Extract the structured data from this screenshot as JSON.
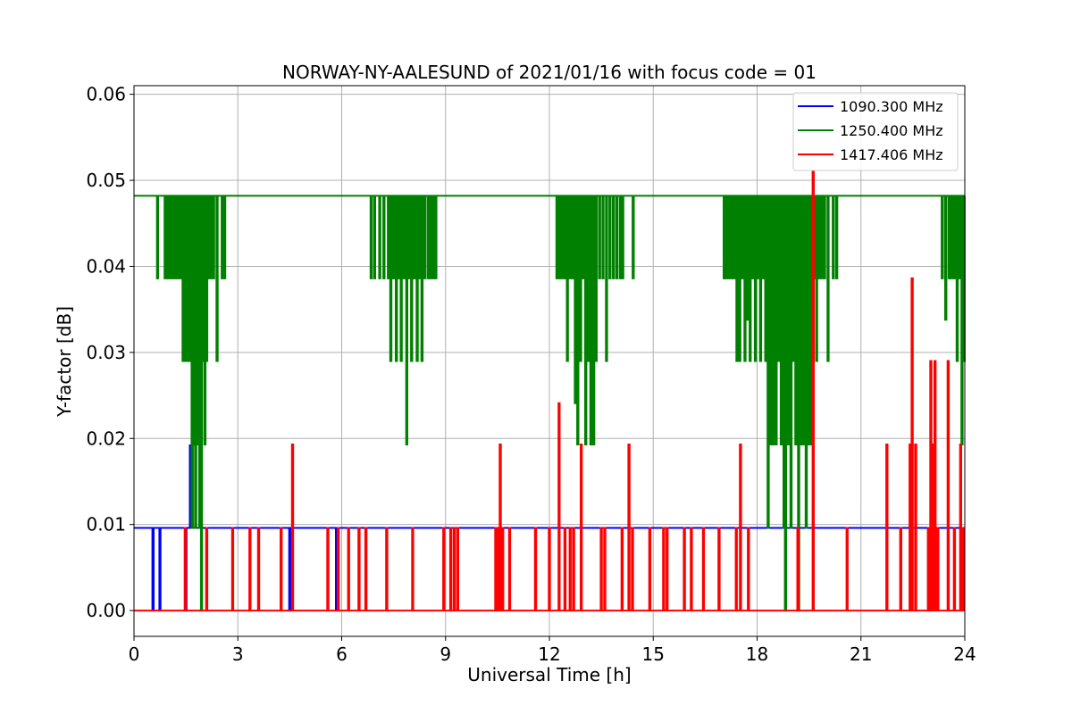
{
  "chart_data": {
    "type": "line",
    "title": "NORWAY-NY-AALESUND of 2021/01/16 with focus code = 01",
    "xlabel": "Universal Time [h]",
    "ylabel": "Y-factor [dB]",
    "xlim": [
      0,
      24
    ],
    "ylim": [
      -0.003,
      0.061
    ],
    "x_ticks": [
      0,
      3,
      6,
      9,
      12,
      15,
      18,
      21,
      24
    ],
    "y_ticks": [
      0.0,
      0.01,
      0.02,
      0.03,
      0.04,
      0.05,
      0.06
    ],
    "y_tick_labels": [
      "0.00",
      "0.01",
      "0.02",
      "0.03",
      "0.04",
      "0.05",
      "0.06"
    ],
    "grid": true,
    "legend_position": "top-right",
    "series": [
      {
        "name": "1090.300 MHz",
        "color": "#0000ff",
        "baseline": 0.0096,
        "dips": [
          {
            "x": 0.55,
            "y": 0.0
          },
          {
            "x": 0.75,
            "y": 0.0
          },
          {
            "x": 1.5,
            "y": 0.0
          },
          {
            "x": 4.5,
            "y": 0.0
          },
          {
            "x": 5.85,
            "y": 0.0
          }
        ],
        "peaks": [
          {
            "x": 1.63,
            "y": 0.0192
          },
          {
            "x": 1.68,
            "y": 0.0192
          }
        ]
      },
      {
        "name": "1250.400 MHz",
        "color": "#008000",
        "baseline": 0.0482,
        "dips": [
          {
            "x": 0.68,
            "y": 0.0386
          },
          {
            "x": 0.9,
            "y": 0.0386
          },
          {
            "x": 0.98,
            "y": 0.0386
          },
          {
            "x": 1.05,
            "y": 0.0386
          },
          {
            "x": 1.12,
            "y": 0.0386
          },
          {
            "x": 1.2,
            "y": 0.0386
          },
          {
            "x": 1.28,
            "y": 0.0386
          },
          {
            "x": 1.35,
            "y": 0.0386
          },
          {
            "x": 1.42,
            "y": 0.029
          },
          {
            "x": 1.48,
            "y": 0.029
          },
          {
            "x": 1.55,
            "y": 0.029
          },
          {
            "x": 1.62,
            "y": 0.029
          },
          {
            "x": 1.68,
            "y": 0.0096
          },
          {
            "x": 1.72,
            "y": 0.0193
          },
          {
            "x": 1.78,
            "y": 0.0096
          },
          {
            "x": 1.83,
            "y": 0.0193
          },
          {
            "x": 1.9,
            "y": 0.0096
          },
          {
            "x": 1.95,
            "y": 0.0
          },
          {
            "x": 2.0,
            "y": 0.029
          },
          {
            "x": 2.05,
            "y": 0.0193
          },
          {
            "x": 2.1,
            "y": 0.029
          },
          {
            "x": 2.15,
            "y": 0.0386
          },
          {
            "x": 2.22,
            "y": 0.0386
          },
          {
            "x": 2.3,
            "y": 0.0386
          },
          {
            "x": 2.4,
            "y": 0.029
          },
          {
            "x": 2.55,
            "y": 0.0386
          },
          {
            "x": 2.62,
            "y": 0.0386
          },
          {
            "x": 6.85,
            "y": 0.0386
          },
          {
            "x": 6.95,
            "y": 0.0386
          },
          {
            "x": 7.1,
            "y": 0.0386
          },
          {
            "x": 7.22,
            "y": 0.0386
          },
          {
            "x": 7.35,
            "y": 0.0386
          },
          {
            "x": 7.42,
            "y": 0.029
          },
          {
            "x": 7.5,
            "y": 0.0386
          },
          {
            "x": 7.58,
            "y": 0.029
          },
          {
            "x": 7.65,
            "y": 0.0386
          },
          {
            "x": 7.72,
            "y": 0.029
          },
          {
            "x": 7.8,
            "y": 0.0386
          },
          {
            "x": 7.88,
            "y": 0.0193
          },
          {
            "x": 7.95,
            "y": 0.0386
          },
          {
            "x": 8.02,
            "y": 0.029
          },
          {
            "x": 8.1,
            "y": 0.0386
          },
          {
            "x": 8.18,
            "y": 0.029
          },
          {
            "x": 8.25,
            "y": 0.0386
          },
          {
            "x": 8.32,
            "y": 0.029
          },
          {
            "x": 8.4,
            "y": 0.0386
          },
          {
            "x": 8.5,
            "y": 0.0386
          },
          {
            "x": 8.58,
            "y": 0.0386
          },
          {
            "x": 8.65,
            "y": 0.0386
          },
          {
            "x": 8.72,
            "y": 0.0386
          },
          {
            "x": 12.22,
            "y": 0.0386
          },
          {
            "x": 12.3,
            "y": 0.0386
          },
          {
            "x": 12.38,
            "y": 0.0386
          },
          {
            "x": 12.45,
            "y": 0.0386
          },
          {
            "x": 12.52,
            "y": 0.029
          },
          {
            "x": 12.6,
            "y": 0.0386
          },
          {
            "x": 12.68,
            "y": 0.0386
          },
          {
            "x": 12.75,
            "y": 0.0241
          },
          {
            "x": 12.82,
            "y": 0.0193
          },
          {
            "x": 12.9,
            "y": 0.029
          },
          {
            "x": 12.98,
            "y": 0.0386
          },
          {
            "x": 13.05,
            "y": 0.0193
          },
          {
            "x": 13.12,
            "y": 0.029
          },
          {
            "x": 13.2,
            "y": 0.0193
          },
          {
            "x": 13.28,
            "y": 0.0193
          },
          {
            "x": 13.35,
            "y": 0.029
          },
          {
            "x": 13.45,
            "y": 0.0386
          },
          {
            "x": 13.55,
            "y": 0.0386
          },
          {
            "x": 13.65,
            "y": 0.029
          },
          {
            "x": 13.75,
            "y": 0.0386
          },
          {
            "x": 13.85,
            "y": 0.0386
          },
          {
            "x": 13.95,
            "y": 0.0386
          },
          {
            "x": 14.05,
            "y": 0.0386
          },
          {
            "x": 14.12,
            "y": 0.0386
          },
          {
            "x": 14.42,
            "y": 0.0386
          },
          {
            "x": 17.05,
            "y": 0.0386
          },
          {
            "x": 17.12,
            "y": 0.0386
          },
          {
            "x": 17.2,
            "y": 0.0386
          },
          {
            "x": 17.28,
            "y": 0.0386
          },
          {
            "x": 17.35,
            "y": 0.0386
          },
          {
            "x": 17.42,
            "y": 0.029
          },
          {
            "x": 17.5,
            "y": 0.029
          },
          {
            "x": 17.58,
            "y": 0.0386
          },
          {
            "x": 17.65,
            "y": 0.029
          },
          {
            "x": 17.72,
            "y": 0.0338
          },
          {
            "x": 17.8,
            "y": 0.029
          },
          {
            "x": 17.88,
            "y": 0.0386
          },
          {
            "x": 17.95,
            "y": 0.029
          },
          {
            "x": 18.02,
            "y": 0.0386
          },
          {
            "x": 18.1,
            "y": 0.029
          },
          {
            "x": 18.18,
            "y": 0.0386
          },
          {
            "x": 18.25,
            "y": 0.029
          },
          {
            "x": 18.32,
            "y": 0.0096
          },
          {
            "x": 18.4,
            "y": 0.0193
          },
          {
            "x": 18.48,
            "y": 0.0193
          },
          {
            "x": 18.55,
            "y": 0.0193
          },
          {
            "x": 18.62,
            "y": 0.029
          },
          {
            "x": 18.7,
            "y": 0.0193
          },
          {
            "x": 18.78,
            "y": 0.0096
          },
          {
            "x": 18.82,
            "y": 0.0
          },
          {
            "x": 18.9,
            "y": 0.0193
          },
          {
            "x": 18.98,
            "y": 0.0096
          },
          {
            "x": 19.05,
            "y": 0.029
          },
          {
            "x": 19.12,
            "y": 0.0193
          },
          {
            "x": 19.2,
            "y": 0.0
          },
          {
            "x": 19.28,
            "y": 0.0193
          },
          {
            "x": 19.35,
            "y": 0.0193
          },
          {
            "x": 19.42,
            "y": 0.0096
          },
          {
            "x": 19.5,
            "y": 0.0193
          },
          {
            "x": 19.58,
            "y": 0.0193
          },
          {
            "x": 19.65,
            "y": 0.0386
          },
          {
            "x": 19.72,
            "y": 0.029
          },
          {
            "x": 19.8,
            "y": 0.0386
          },
          {
            "x": 19.88,
            "y": 0.0386
          },
          {
            "x": 19.95,
            "y": 0.0386
          },
          {
            "x": 20.05,
            "y": 0.029
          },
          {
            "x": 20.2,
            "y": 0.0386
          },
          {
            "x": 20.3,
            "y": 0.0386
          },
          {
            "x": 23.35,
            "y": 0.0386
          },
          {
            "x": 23.45,
            "y": 0.0338
          },
          {
            "x": 23.55,
            "y": 0.0386
          },
          {
            "x": 23.62,
            "y": 0.0386
          },
          {
            "x": 23.7,
            "y": 0.0386
          },
          {
            "x": 23.78,
            "y": 0.029
          },
          {
            "x": 23.85,
            "y": 0.0386
          },
          {
            "x": 23.92,
            "y": 0.0193
          },
          {
            "x": 23.98,
            "y": 0.029
          }
        ],
        "peaks": []
      },
      {
        "name": "1417.406 MHz",
        "color": "#ff0000",
        "baseline": 0.0,
        "dips": [],
        "peaks": [
          {
            "x": 1.48,
            "y": 0.0096
          },
          {
            "x": 2.1,
            "y": 0.0096
          },
          {
            "x": 2.85,
            "y": 0.0096
          },
          {
            "x": 3.35,
            "y": 0.0096
          },
          {
            "x": 3.6,
            "y": 0.0096
          },
          {
            "x": 4.25,
            "y": 0.0096
          },
          {
            "x": 4.58,
            "y": 0.0193
          },
          {
            "x": 5.6,
            "y": 0.0096
          },
          {
            "x": 5.9,
            "y": 0.0096
          },
          {
            "x": 6.2,
            "y": 0.0096
          },
          {
            "x": 6.5,
            "y": 0.0096
          },
          {
            "x": 6.7,
            "y": 0.0096
          },
          {
            "x": 7.3,
            "y": 0.0096
          },
          {
            "x": 8.05,
            "y": 0.0096
          },
          {
            "x": 8.95,
            "y": 0.0096
          },
          {
            "x": 9.15,
            "y": 0.0096
          },
          {
            "x": 9.25,
            "y": 0.0096
          },
          {
            "x": 9.35,
            "y": 0.0096
          },
          {
            "x": 10.45,
            "y": 0.0096
          },
          {
            "x": 10.52,
            "y": 0.0096
          },
          {
            "x": 10.58,
            "y": 0.0193
          },
          {
            "x": 10.65,
            "y": 0.0096
          },
          {
            "x": 10.85,
            "y": 0.0096
          },
          {
            "x": 11.6,
            "y": 0.0096
          },
          {
            "x": 12.0,
            "y": 0.0096
          },
          {
            "x": 12.28,
            "y": 0.0241
          },
          {
            "x": 12.45,
            "y": 0.0096
          },
          {
            "x": 12.6,
            "y": 0.0096
          },
          {
            "x": 12.7,
            "y": 0.0096
          },
          {
            "x": 12.92,
            "y": 0.0193
          },
          {
            "x": 13.5,
            "y": 0.0096
          },
          {
            "x": 13.6,
            "y": 0.0096
          },
          {
            "x": 14.1,
            "y": 0.0096
          },
          {
            "x": 14.3,
            "y": 0.0193
          },
          {
            "x": 14.4,
            "y": 0.0096
          },
          {
            "x": 14.9,
            "y": 0.0096
          },
          {
            "x": 15.3,
            "y": 0.0096
          },
          {
            "x": 15.4,
            "y": 0.0096
          },
          {
            "x": 15.9,
            "y": 0.0096
          },
          {
            "x": 16.1,
            "y": 0.0096
          },
          {
            "x": 16.45,
            "y": 0.0096
          },
          {
            "x": 16.9,
            "y": 0.0096
          },
          {
            "x": 17.4,
            "y": 0.0096
          },
          {
            "x": 17.52,
            "y": 0.0193
          },
          {
            "x": 17.75,
            "y": 0.0096
          },
          {
            "x": 19.18,
            "y": 0.0096
          },
          {
            "x": 19.62,
            "y": 0.051
          },
          {
            "x": 20.6,
            "y": 0.0096
          },
          {
            "x": 21.75,
            "y": 0.0193
          },
          {
            "x": 22.15,
            "y": 0.0096
          },
          {
            "x": 22.42,
            "y": 0.0193
          },
          {
            "x": 22.48,
            "y": 0.0386
          },
          {
            "x": 22.58,
            "y": 0.0193
          },
          {
            "x": 22.95,
            "y": 0.0096
          },
          {
            "x": 23.02,
            "y": 0.029
          },
          {
            "x": 23.08,
            "y": 0.0193
          },
          {
            "x": 23.14,
            "y": 0.029
          },
          {
            "x": 23.22,
            "y": 0.0096
          },
          {
            "x": 23.52,
            "y": 0.029
          },
          {
            "x": 23.7,
            "y": 0.0096
          },
          {
            "x": 23.88,
            "y": 0.0193
          },
          {
            "x": 23.95,
            "y": 0.0096
          }
        ]
      }
    ]
  }
}
